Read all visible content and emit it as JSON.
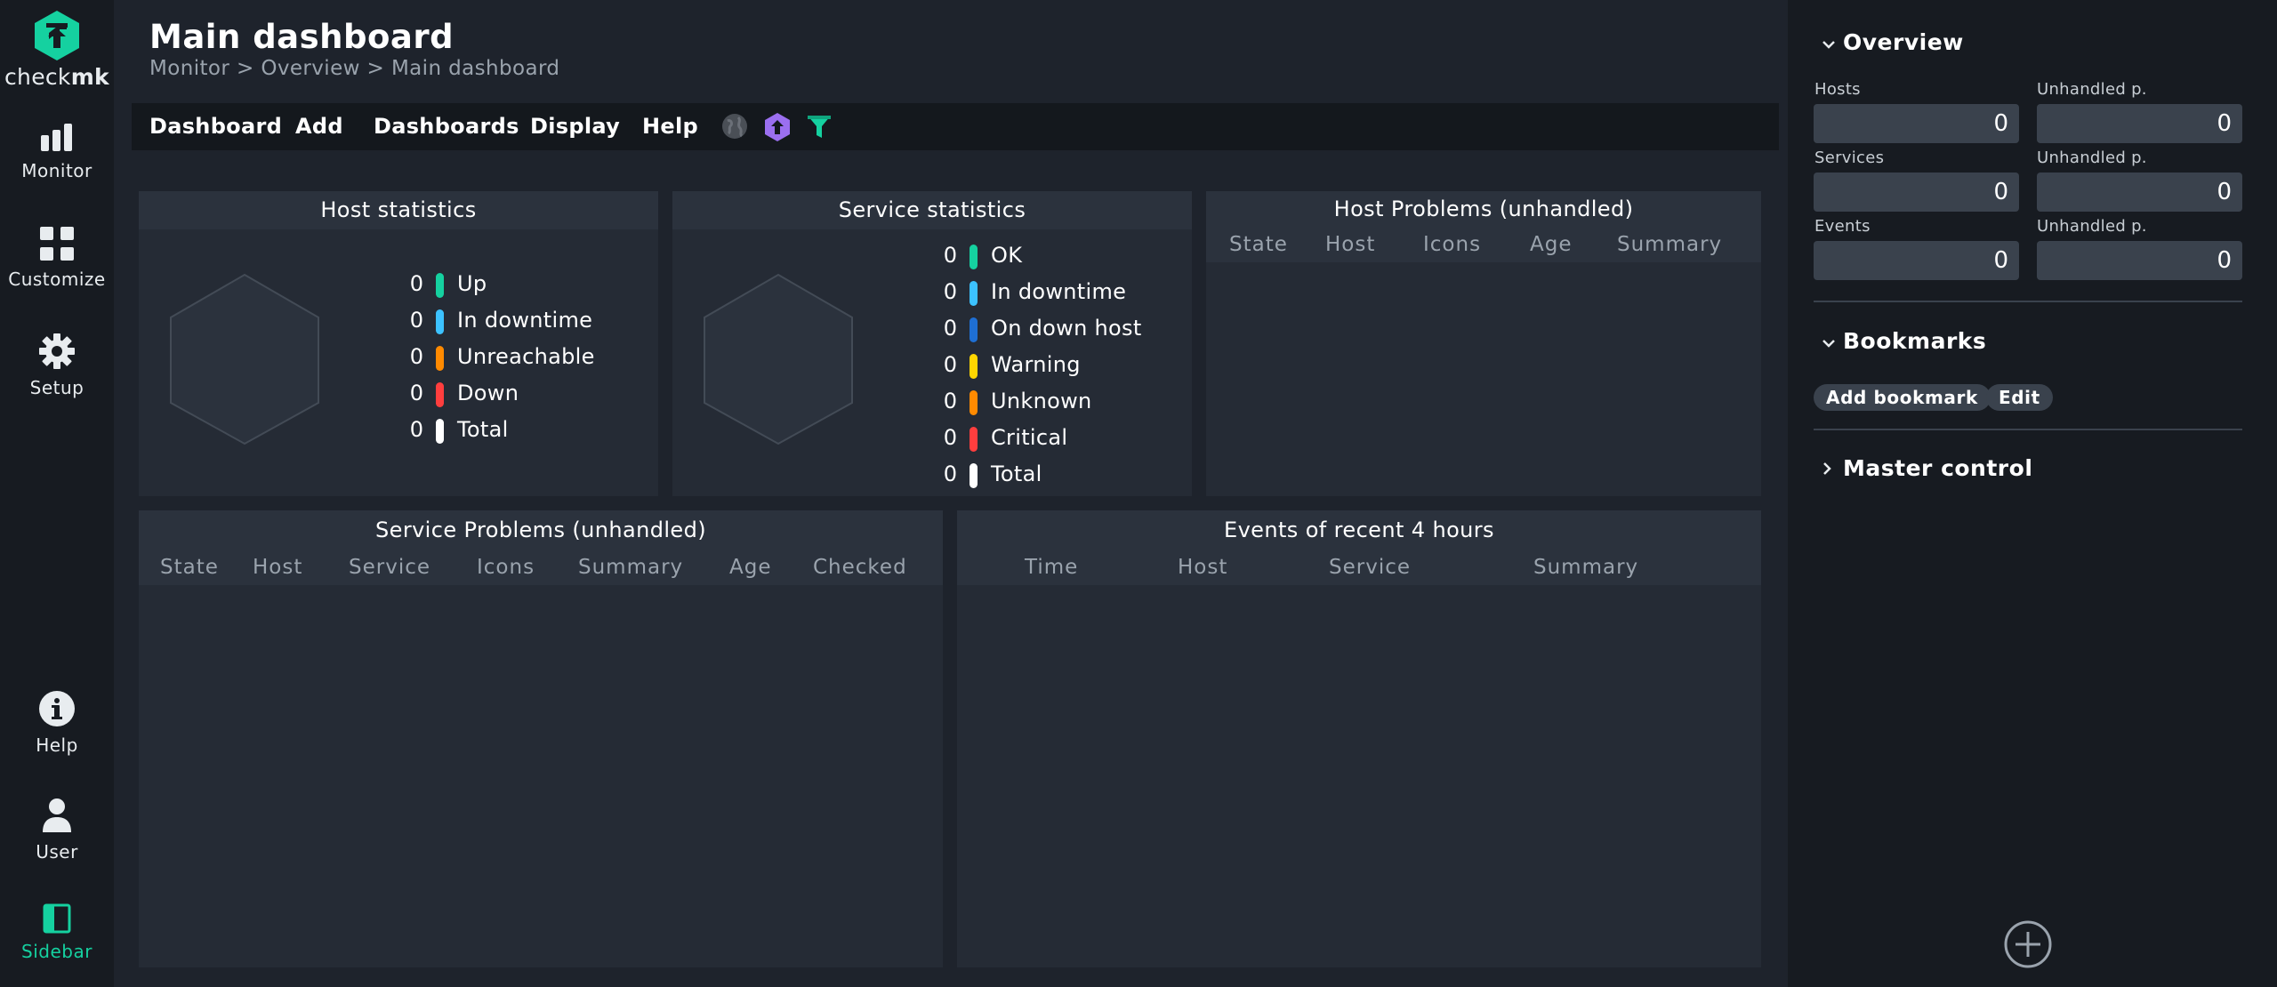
{
  "brand": {
    "logo_text_a": "check",
    "logo_text_b": "mk",
    "accent": "#15d1a0"
  },
  "leftnav": {
    "monitor": "Monitor",
    "customize": "Customize",
    "setup": "Setup",
    "help": "Help",
    "user": "User",
    "sidebar": "Sidebar"
  },
  "header": {
    "title": "Main dashboard",
    "breadcrumb": [
      "Monitor",
      "Overview",
      "Main dashboard"
    ],
    "breadcrumb_sep": ">"
  },
  "menubar": {
    "items": [
      "Dashboard",
      "Add",
      "Dashboards",
      "Display",
      "Help"
    ],
    "icons": [
      "globe-icon",
      "checkmk-icon",
      "filter-icon"
    ]
  },
  "dashlets": {
    "host_stats": {
      "title": "Host statistics",
      "rows": [
        {
          "count": "0",
          "label": "Up",
          "color": "#15d1a0"
        },
        {
          "count": "0",
          "label": "In downtime",
          "color": "#3cc2ff"
        },
        {
          "count": "0",
          "label": "Unreachable",
          "color": "#ff8a00"
        },
        {
          "count": "0",
          "label": "Down",
          "color": "#ff3e3e"
        },
        {
          "count": "0",
          "label": "Total",
          "color": "#ffffff"
        }
      ]
    },
    "service_stats": {
      "title": "Service statistics",
      "rows": [
        {
          "count": "0",
          "label": "OK",
          "color": "#15d1a0"
        },
        {
          "count": "0",
          "label": "In downtime",
          "color": "#3cc2ff"
        },
        {
          "count": "0",
          "label": "On down host",
          "color": "#1e6fd4"
        },
        {
          "count": "0",
          "label": "Warning",
          "color": "#ffd600"
        },
        {
          "count": "0",
          "label": "Unknown",
          "color": "#ff8a00"
        },
        {
          "count": "0",
          "label": "Critical",
          "color": "#ff3e3e"
        },
        {
          "count": "0",
          "label": "Total",
          "color": "#ffffff"
        }
      ]
    },
    "host_problems": {
      "title": "Host Problems (unhandled)",
      "columns": [
        "State",
        "Host",
        "Icons",
        "Age",
        "Summary"
      ]
    },
    "service_problems": {
      "title": "Service Problems (unhandled)",
      "columns": [
        "State",
        "Host",
        "Service",
        "Icons",
        "Summary",
        "Age",
        "Checked"
      ]
    },
    "events": {
      "title": "Events of recent 4 hours",
      "columns": [
        "Time",
        "Host",
        "Service",
        "Summary"
      ]
    }
  },
  "sidebar": {
    "overview": {
      "title": "Overview",
      "hosts_label": "Hosts",
      "hosts_value": "0",
      "hosts_unhandled_label": "Unhandled p.",
      "hosts_unhandled_value": "0",
      "services_label": "Services",
      "services_value": "0",
      "services_unhandled_label": "Unhandled p.",
      "services_unhandled_value": "0",
      "events_label": "Events",
      "events_value": "0",
      "events_unhandled_label": "Unhandled p.",
      "events_unhandled_value": "0"
    },
    "bookmarks": {
      "title": "Bookmarks",
      "add_label": "Add bookmark",
      "edit_label": "Edit"
    },
    "master_control": {
      "title": "Master control"
    }
  }
}
